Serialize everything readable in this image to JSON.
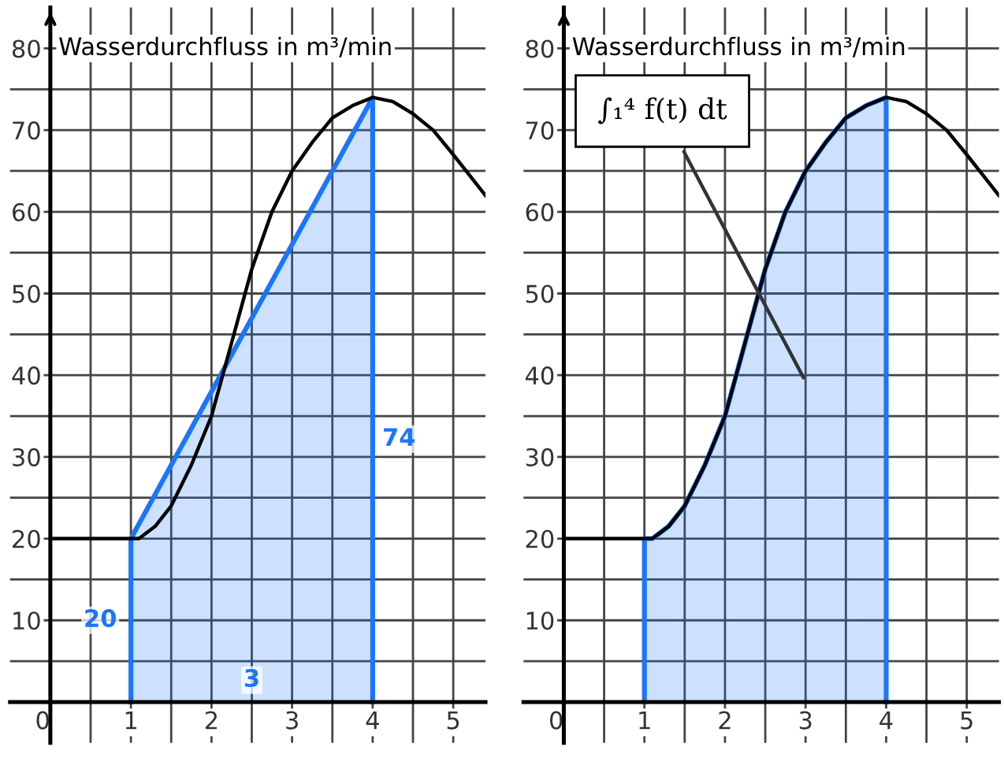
{
  "chart_data": [
    {
      "type": "line",
      "ylabel": "Wasserdurchfluss in m³/min",
      "xlim": [
        -0.5,
        5.4
      ],
      "ylim": [
        -5,
        85
      ],
      "xticks": [
        {
          "value": 0,
          "label": "0"
        },
        {
          "value": 0.5,
          "label": null
        },
        1,
        {
          "value": 1.5,
          "label": null
        },
        2,
        {
          "value": 2.5,
          "label": null
        },
        3,
        {
          "value": 3.5,
          "label": null
        },
        4,
        {
          "value": 4.5,
          "label": null
        },
        5
      ],
      "yticks": [
        {
          "value": 0,
          "label": null
        },
        {
          "value": 5,
          "label": null
        },
        10,
        {
          "value": 15,
          "label": null
        },
        20,
        {
          "value": 25,
          "label": null
        },
        30,
        {
          "value": 35,
          "label": null
        },
        40,
        {
          "value": 45,
          "label": null
        },
        50,
        {
          "value": 55,
          "label": null
        },
        60,
        {
          "value": 65,
          "label": null
        },
        70,
        {
          "value": 75,
          "label": null
        },
        80
      ],
      "grid": true,
      "legend": false,
      "series": [
        {
          "type": "area",
          "color": "#1a75ff",
          "x": [
            1,
            4
          ],
          "values": [
            20,
            74
          ]
        },
        {
          "type": "line",
          "color": "#000000",
          "x": [
            0,
            1,
            1.1,
            1.3,
            1.5,
            1.75,
            2,
            2.25,
            2.5,
            2.75,
            3,
            3.25,
            3.5,
            3.75,
            4,
            4.25,
            4.5,
            4.75,
            5,
            5.2,
            5.4
          ],
          "values": [
            20,
            20,
            20,
            21.5,
            24,
            29,
            35,
            44,
            53,
            60,
            65,
            68.5,
            71.5,
            73,
            74,
            73.5,
            72,
            70,
            67,
            64.5,
            62
          ]
        }
      ],
      "annotations": [
        "20",
        "74",
        "3"
      ]
    },
    {
      "type": "line",
      "ylabel": "Wasserdurchfluss in m³/min",
      "xlim": [
        -0.5,
        5.4
      ],
      "ylim": [
        -5,
        85
      ],
      "xticks": [
        {
          "value": 0,
          "label": "0"
        },
        {
          "value": 0.5,
          "label": null
        },
        1,
        {
          "value": 1.5,
          "label": null
        },
        2,
        {
          "value": 2.5,
          "label": null
        },
        3,
        {
          "value": 3.5,
          "label": null
        },
        4,
        {
          "value": 4.5,
          "label": null
        },
        5
      ],
      "yticks": [
        {
          "value": 0,
          "label": null
        },
        {
          "value": 5,
          "label": null
        },
        10,
        {
          "value": 15,
          "label": null
        },
        20,
        {
          "value": 25,
          "label": null
        },
        30,
        {
          "value": 35,
          "label": null
        },
        40,
        {
          "value": 45,
          "label": null
        },
        50,
        {
          "value": 55,
          "label": null
        },
        60,
        {
          "value": 65,
          "label": null
        },
        70,
        {
          "value": 75,
          "label": null
        },
        80
      ],
      "grid": true,
      "legend": false,
      "series": [
        {
          "type": "area",
          "color": "#1a75ff",
          "x": [
            1,
            1.1,
            1.3,
            1.5,
            1.75,
            2,
            2.25,
            2.5,
            2.75,
            3,
            3.25,
            3.5,
            3.75,
            4
          ],
          "values": [
            20,
            20,
            21.5,
            24,
            29,
            35,
            44,
            53,
            60,
            65,
            68.5,
            71.5,
            73,
            74
          ]
        },
        {
          "type": "line",
          "color": "#000000",
          "x": [
            0,
            1,
            1.1,
            1.3,
            1.5,
            1.75,
            2,
            2.25,
            2.5,
            2.75,
            3,
            3.25,
            3.5,
            3.75,
            4,
            4.25,
            4.5,
            4.75,
            5,
            5.2,
            5.4
          ],
          "values": [
            20,
            20,
            20,
            21.5,
            24,
            29,
            35,
            44,
            53,
            60,
            65,
            68.5,
            71.5,
            73,
            74,
            73.5,
            72,
            70,
            67,
            64.5,
            62
          ]
        }
      ],
      "annotations": [
        "∫₁⁴ f(t) dt"
      ]
    }
  ]
}
